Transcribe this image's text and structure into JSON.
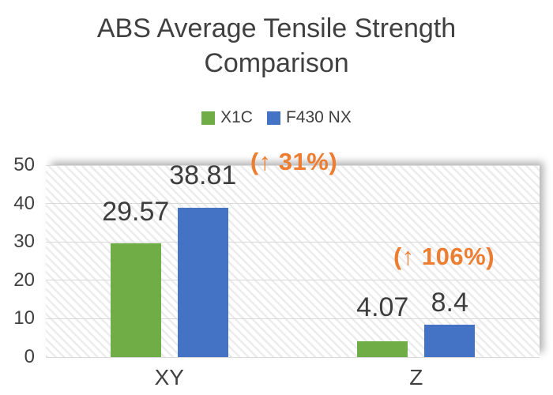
{
  "title": {
    "lines": [
      "ABS Average Tensile Strength",
      "Comparison"
    ]
  },
  "chart_data": {
    "type": "bar",
    "title": "ABS Average Tensile Strength Comparison",
    "categories": [
      "XY",
      "Z"
    ],
    "series": [
      {
        "name": "X1C",
        "color": "#70AD47",
        "values": [
          29.57,
          4.07
        ]
      },
      {
        "name": "F430 NX",
        "color": "#4472C4",
        "values": [
          38.81,
          8.4
        ]
      }
    ],
    "data_labels": {
      "X1C": [
        "29.57",
        "4.07"
      ],
      "F430 NX": [
        "38.81",
        "8.4"
      ]
    },
    "annotations": [
      {
        "text": "(↑ 31%)",
        "refers_to_category": "XY"
      },
      {
        "text": "(↑ 106%)",
        "refers_to_category": "Z"
      }
    ],
    "annotation_color": "#ED7D31",
    "yticks": [
      0,
      10,
      20,
      30,
      40,
      50
    ],
    "ylim": [
      0,
      50
    ],
    "xlabel": "",
    "ylabel": "",
    "grid": true,
    "legend_position": "top",
    "plot_background": "diagonal-hatch"
  },
  "colors": {
    "text": "#404040",
    "data_label_text": "#3d3d3d",
    "gridline": "#D9D9D9",
    "hatch_stripe": "#ECECEC",
    "background": "#FFFFFF"
  }
}
